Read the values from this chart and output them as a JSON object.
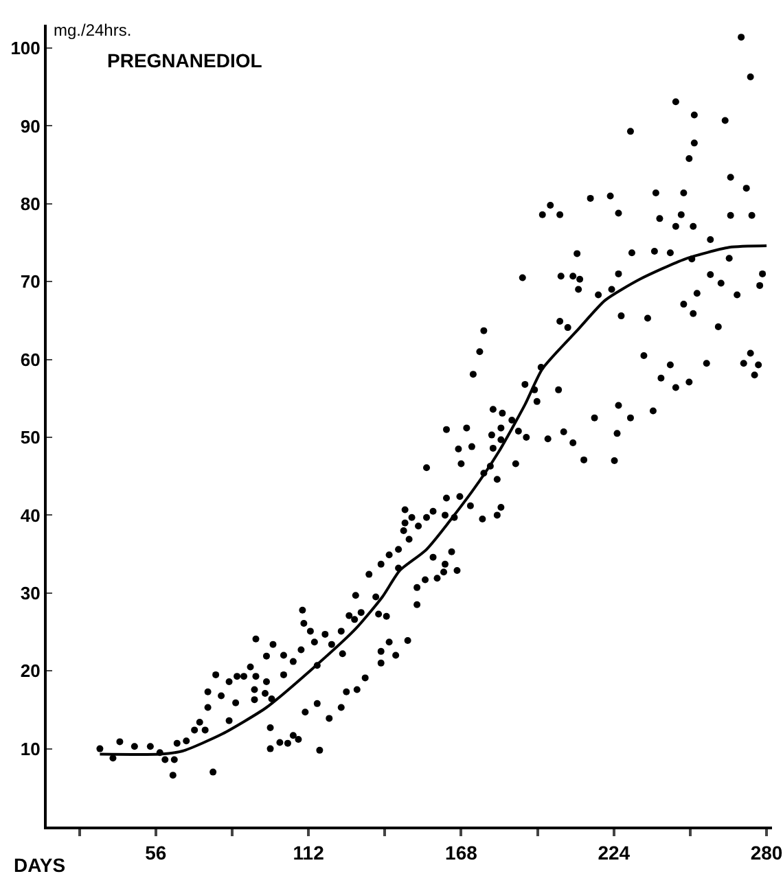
{
  "chart_data": {
    "type": "scatter",
    "title": "PREGNANEDIOL",
    "xlabel": "DAYS",
    "ylabel": "mg./24hrs.",
    "xlim": [
      16,
      282
    ],
    "xticks": [
      {
        "value": 28,
        "label": null
      },
      56,
      {
        "value": 84,
        "label": null
      },
      112,
      {
        "value": 140,
        "label": null
      },
      168,
      {
        "value": 196,
        "label": null
      },
      224,
      {
        "value": 252,
        "label": null
      },
      280
    ],
    "ylim": [
      0,
      103
    ],
    "yticks": [
      10,
      20,
      30,
      40,
      50,
      60,
      70,
      80,
      90,
      100
    ],
    "grid": false,
    "series": [
      {
        "color": "#000000",
        "marker": "circle",
        "x": [
          35.5,
          40.3,
          42.8,
          48.2,
          54.0,
          57.5,
          59.4,
          62.8,
          62.3,
          63.8,
          67.2,
          70.2,
          72.1,
          74.1,
          75.1,
          75.1,
          78.0,
          77.0,
          80.0,
          82.9,
          82.9,
          85.3,
          85.8,
          88.3,
          90.7,
          92.7,
          92.2,
          92.2,
          96.6,
          96.6,
          98.5,
          98.0,
          98.0,
          101.5,
          104.4,
          106.4,
          108.3,
          116.1,
          110.8,
          115.2,
          119.6,
          102.9,
          102.9,
          99.0,
          106.4,
          109.3,
          109.8,
          110.3,
          112.7,
          114.2,
          115.2,
          118.1,
          120.5,
          124.0,
          124.5,
          124.0,
          125.9,
          126.9,
          128.9,
          129.3,
          131.3,
          129.8,
          132.8,
          134.2,
          136.7,
          137.7,
          138.6,
          138.6,
          138.6,
          140.6,
          141.6,
          141.6,
          144.0,
          145.0,
          145.0,
          148.4,
          147.4,
          148.9,
          151.8,
          151.8,
          92.7,
          96.1,
          176.3,
          174.8,
          172.4,
          197.3,
          191.4,
          194.9,
          195.8,
          179.7,
          183.1,
          186.6,
          189.0,
          191.9,
          179.2,
          182.6,
          182.6,
          179.7,
          162.6,
          170.0,
          167.0,
          171.9,
          168.0,
          155.3,
          178.7,
          176.3,
          181.2,
          188.0,
          162.6,
          167.5,
          171.4,
          175.8,
          181.2,
          182.6,
          147.4,
          146.9,
          149.9,
          152.3,
          155.3,
          157.7,
          162.1,
          165.5,
          157.7,
          162.1,
          164.5,
          166.5,
          161.6,
          159.2,
          154.8,
          197.8,
          200.7,
          204.2,
          215.4,
          222.7,
          225.7,
          239.4,
          240.8,
          248.7,
          249.6,
          246.7,
          253.1,
          259.4,
          266.8,
          272.6,
          274.6,
          210.5,
          230.6,
          238.9,
          244.7,
          252.6,
          266.3,
          190.5,
          204.6,
          209.0,
          211.5,
          211.0,
          218.3,
          223.2,
          225.7,
          259.4,
          263.3,
          254.5,
          269.2,
          278.5,
          277.5,
          249.6,
          253.1,
          226.7,
          236.4,
          204.2,
          207.1,
          262.3,
          235.0,
          244.7,
          241.3,
          246.7,
          251.6,
          258.0,
          271.6,
          274.1,
          277.0,
          275.6,
          203.7,
          216.9,
          225.7,
          230.1,
          238.4,
          199.8,
          205.6,
          209.0,
          225.2,
          213.0,
          224.2,
          270.7,
          274.1,
          246.7,
          253.5,
          264.8,
          230.1,
          253.5,
          251.6,
          266.8
        ],
        "values": [
          10.0,
          8.8,
          10.9,
          10.3,
          10.3,
          9.5,
          8.6,
          8.6,
          6.6,
          10.7,
          11.0,
          12.4,
          13.4,
          12.4,
          15.3,
          17.3,
          19.5,
          7.0,
          16.8,
          18.6,
          13.6,
          15.9,
          19.3,
          19.3,
          20.5,
          19.3,
          17.6,
          16.3,
          21.9,
          18.6,
          16.4,
          12.7,
          10.0,
          10.8,
          10.7,
          11.7,
          11.2,
          9.8,
          14.7,
          15.8,
          13.9,
          19.5,
          22.0,
          23.4,
          21.2,
          22.7,
          27.8,
          26.1,
          25.1,
          23.7,
          20.7,
          24.7,
          23.4,
          25.1,
          22.2,
          15.3,
          17.3,
          27.1,
          26.6,
          29.7,
          27.5,
          17.6,
          19.1,
          32.4,
          29.5,
          27.3,
          33.7,
          22.5,
          21.0,
          27.0,
          34.9,
          23.7,
          22.0,
          35.6,
          33.2,
          23.9,
          39.0,
          36.9,
          30.7,
          28.5,
          24.1,
          17.1,
          63.7,
          61.0,
          58.1,
          59.0,
          56.8,
          56.1,
          54.6,
          53.6,
          53.1,
          52.2,
          50.8,
          50.0,
          50.3,
          51.2,
          49.7,
          48.6,
          51.0,
          51.2,
          48.5,
          48.8,
          46.6,
          46.1,
          46.3,
          45.4,
          44.6,
          46.6,
          42.2,
          42.4,
          41.2,
          39.5,
          40.0,
          41.0,
          40.7,
          38.0,
          39.7,
          38.6,
          39.7,
          40.5,
          40.0,
          39.7,
          34.6,
          33.7,
          35.3,
          32.9,
          32.7,
          31.9,
          31.7,
          78.6,
          79.8,
          78.6,
          80.7,
          81.0,
          78.8,
          81.4,
          78.1,
          78.6,
          81.4,
          77.1,
          77.1,
          75.4,
          78.5,
          82.0,
          78.5,
          73.6,
          73.7,
          73.9,
          73.7,
          72.9,
          73.0,
          70.5,
          70.7,
          70.7,
          70.3,
          69.0,
          68.3,
          69.0,
          71.0,
          70.9,
          69.8,
          68.5,
          68.3,
          71.0,
          69.5,
          67.1,
          65.9,
          65.6,
          65.3,
          64.9,
          64.1,
          64.2,
          60.5,
          59.3,
          57.6,
          56.4,
          57.1,
          59.5,
          59.5,
          60.8,
          59.3,
          58.0,
          56.1,
          52.5,
          54.1,
          52.5,
          53.4,
          49.8,
          50.7,
          49.3,
          50.5,
          47.1,
          47.0,
          101.4,
          96.3,
          93.1,
          91.4,
          90.7,
          89.3,
          87.8,
          85.8,
          83.4
        ]
      },
      {
        "type": "line",
        "color": "#000000",
        "marker": "none",
        "line_style": "solid",
        "x": [
          35.5,
          57.5,
          65.8,
          80.4,
          96.6,
          113.2,
          129.3,
          139.1,
          145.5,
          155.3,
          171.9,
          181.7,
          191.4,
          197.8,
          211.0,
          220.8,
          233.5,
          250.1,
          266.3,
          280
        ],
        "values": [
          9.3,
          9.3,
          9.7,
          11.9,
          15.3,
          20.2,
          25.4,
          29.5,
          32.9,
          35.6,
          43.0,
          48.1,
          54.2,
          58.8,
          63.9,
          67.6,
          70.3,
          72.9,
          74.4,
          74.6
        ]
      }
    ]
  }
}
